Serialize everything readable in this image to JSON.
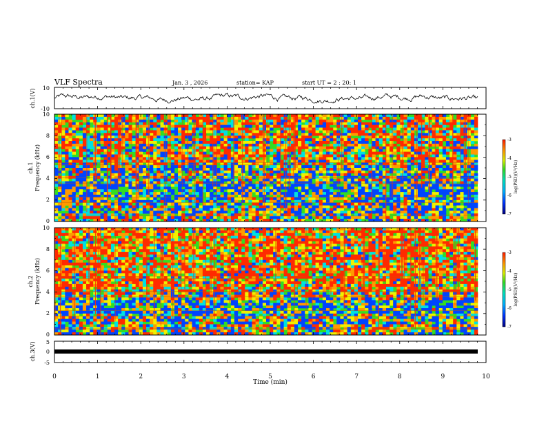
{
  "header": {
    "title": "VLF Spectra",
    "date": "Jan. 3 , 2026",
    "station": "station= KAP",
    "start_ut": "start UT = 2 : 20: 1"
  },
  "chart_data": [
    {
      "id": "ch1-waveform",
      "type": "line",
      "ylabel": "ch.1(V)",
      "ylim": [
        -10,
        10
      ],
      "yticks": [
        "10",
        "-10"
      ],
      "description_values": "noisy waveform around 0 V, amplitude roughly ±6 V",
      "xlim": [
        0,
        10
      ]
    },
    {
      "id": "ch1-spectrogram",
      "type": "heatmap",
      "ylabel_line1": "ch.1",
      "ylabel_line2": "Frequency (kHz)",
      "ylim": [
        0,
        10
      ],
      "yticks": [
        "0",
        "2",
        "4",
        "6",
        "8",
        "10"
      ],
      "xlim": [
        0,
        10
      ],
      "colorbar": {
        "label": "log(PSD)(V²/Hz)",
        "ticks": [
          "-3",
          "-4",
          "-5",
          "-6",
          "-7"
        ],
        "range": [
          -7,
          -3
        ]
      }
    },
    {
      "id": "ch2-spectrogram",
      "type": "heatmap",
      "ylabel_line1": "ch.2",
      "ylabel_line2": "Frequency (kHz)",
      "ylim": [
        0,
        10
      ],
      "yticks": [
        "0",
        "2",
        "4",
        "6",
        "8",
        "10"
      ],
      "xlim": [
        0,
        10
      ],
      "colorbar": {
        "label": "log(PSD)(V²/Hz)",
        "ticks": [
          "-3",
          "-4",
          "-5",
          "-6",
          "-7"
        ],
        "range": [
          -7,
          -3
        ]
      }
    },
    {
      "id": "ch3-waveform",
      "type": "line",
      "ylabel": "ch.3(V)",
      "ylim": [
        -5,
        5
      ],
      "yticks": [
        "5",
        "0",
        "-5"
      ],
      "level": -1,
      "xlim": [
        0,
        10
      ],
      "xticks": [
        "0",
        "1",
        "2",
        "3",
        "4",
        "5",
        "6",
        "7",
        "8",
        "9",
        "10"
      ],
      "xlabel": "Time (min)"
    }
  ],
  "colors": {
    "red": "#ff2a00",
    "orange": "#ff9a00",
    "yellow": "#f0f000",
    "green": "#33dd22",
    "cyan": "#00e0e0",
    "blue": "#0044ff",
    "navy": "#000080"
  }
}
